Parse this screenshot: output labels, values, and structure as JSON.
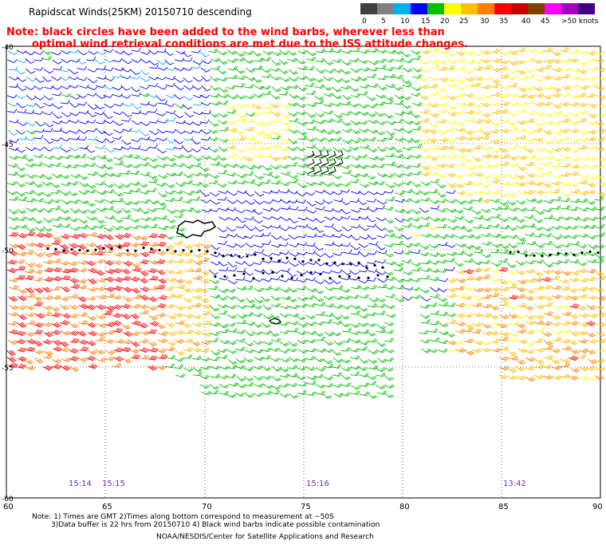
{
  "title": "Rapidscat Winds(25KM) 20150710 descending",
  "note": {
    "line1": "Note: black circles have been added to the wind barbs, wherever less than",
    "line2": "optimal wind retrieval conditions are met due to the ISS attitude changes."
  },
  "scale": {
    "colors": [
      "#404040",
      "#808080",
      "#00b0f0",
      "#0000ff",
      "#00c000",
      "#ffff00",
      "#ffc000",
      "#ff8000",
      "#ff0000",
      "#c00000",
      "#804000",
      "#ff00ff",
      "#a000c0",
      "#400080"
    ],
    "labels": [
      "0",
      "5",
      "10",
      "15",
      "20",
      "25",
      "30",
      "35",
      "40",
      "45",
      ">50 knots"
    ]
  },
  "axes": {
    "lon_ticks": [
      "60",
      "65",
      "70",
      "75",
      "80",
      "85",
      "90"
    ],
    "lat_ticks": [
      "-40",
      "-45",
      "-50",
      "-55",
      "-60"
    ]
  },
  "times": [
    "15:14",
    "15:15",
    "15:16",
    "13:42"
  ],
  "footer": {
    "line1": "Note: 1) Times are GMT 2)Times along bottom correspond to measurement at ~50S",
    "line2": "3)Data buffer is 22 hrs from 20150710 4) Black wind barbs indicate possible contamination",
    "credit": "NOAA/NESDIS/Center for Satellite Applications and Research"
  }
}
